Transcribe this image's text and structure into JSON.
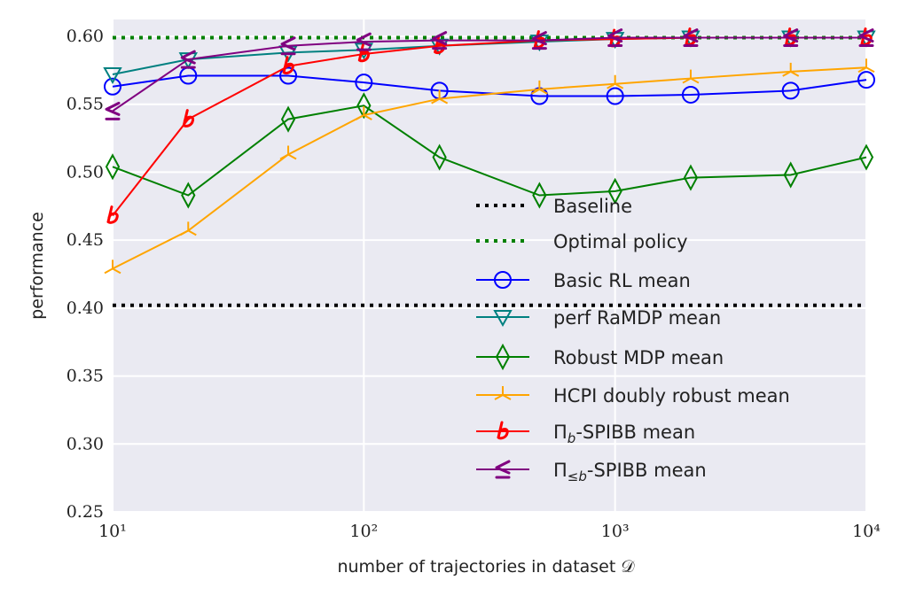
{
  "chart_data": {
    "type": "line",
    "title": "",
    "xlabel": "number of trajectories in dataset 𝒟",
    "ylabel": "performance",
    "xscale": "log",
    "xlim": [
      10,
      10000
    ],
    "ylim": [
      0.25,
      0.6
    ],
    "grid": true,
    "legend_placement": "lower-right",
    "x_ticks": [
      "10¹",
      "10²",
      "10³",
      "10⁴"
    ],
    "x_tick_values": [
      10,
      100,
      1000,
      10000
    ],
    "y_ticks": [
      "0.25",
      "0.30",
      "0.35",
      "0.40",
      "0.45",
      "0.50",
      "0.55",
      "0.60"
    ],
    "y_tick_values": [
      0.25,
      0.3,
      0.35,
      0.4,
      0.45,
      0.5,
      0.55,
      0.6
    ],
    "x": [
      10,
      20,
      50,
      100,
      200,
      500,
      1000,
      2000,
      5000,
      10000
    ],
    "hlines": [
      {
        "name": "Baseline",
        "value": 0.402,
        "color": "#000000"
      },
      {
        "name": "Optimal policy",
        "value": 0.599,
        "color": "#008000"
      }
    ],
    "series": [
      {
        "name": "Basic RL mean",
        "color": "#0000ff",
        "marker": "circle",
        "values": [
          0.563,
          0.571,
          0.571,
          0.566,
          0.56,
          0.556,
          0.556,
          0.557,
          0.56,
          0.568
        ]
      },
      {
        "name": "perf RaMDP mean",
        "color": "#008080",
        "marker": "triangle-down",
        "values": [
          0.572,
          0.583,
          0.588,
          0.59,
          0.593,
          0.596,
          0.598,
          0.599,
          0.599,
          0.599
        ]
      },
      {
        "name": "Robust MDP mean",
        "color": "#008000",
        "marker": "thin-diamond",
        "values": [
          0.504,
          0.483,
          0.539,
          0.549,
          0.511,
          0.483,
          0.486,
          0.496,
          0.498,
          0.511
        ]
      },
      {
        "name": "HCPI doubly robust mean",
        "color": "#ffa500",
        "marker": "tri",
        "values": [
          0.429,
          0.457,
          0.513,
          0.542,
          0.554,
          0.561,
          0.565,
          0.569,
          0.574,
          0.577
        ]
      },
      {
        "name": "Πb-SPIBB mean",
        "color": "#ff0000",
        "marker": "b",
        "values": [
          0.468,
          0.539,
          0.578,
          0.587,
          0.593,
          0.597,
          0.598,
          0.599,
          0.599,
          0.599
        ]
      },
      {
        "name": "Π≤b-SPIBB mean",
        "color": "#800080",
        "marker": "leq",
        "values": [
          0.545,
          0.583,
          0.593,
          0.596,
          0.597,
          0.597,
          0.599,
          0.599,
          0.599,
          0.599
        ]
      }
    ]
  }
}
